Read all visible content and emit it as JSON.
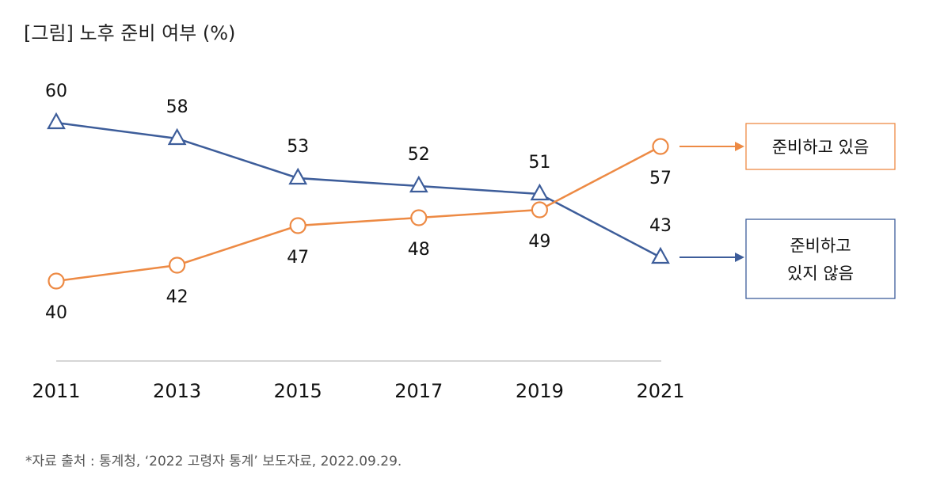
{
  "title": "[그림] 노후 준비 여부 (%)",
  "source": "*자료 출처 : 통계청, ‘2022 고령자 통계’ 보도자료, 2022.09.29.",
  "chart_data": {
    "type": "line",
    "title": "[그림] 노후 준비 여부 (%)",
    "xlabel": "",
    "ylabel": "",
    "categories": [
      "2011",
      "2013",
      "2015",
      "2017",
      "2019",
      "2021"
    ],
    "ylim": [
      35,
      65
    ],
    "grid": false,
    "legend_position": "right",
    "series": [
      {
        "name": "준비하지 않음",
        "legend_lines": [
          "준비하고",
          "있지 않음"
        ],
        "values": [
          60,
          58,
          53,
          52,
          51,
          43
        ],
        "color": "#3d5d9a",
        "marker": "triangle",
        "label_position": "above"
      },
      {
        "name": "준비하고 있음",
        "legend_lines": [
          "준비하고 있음"
        ],
        "values": [
          40,
          42,
          47,
          48,
          49,
          57
        ],
        "color": "#ed8a44",
        "marker": "circle",
        "label_position": "below"
      }
    ]
  }
}
